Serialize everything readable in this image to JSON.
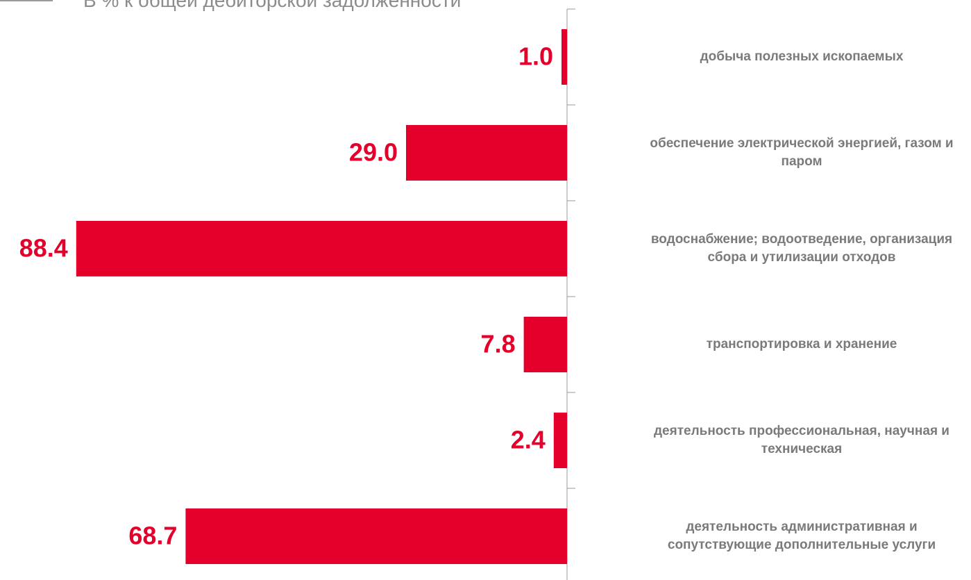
{
  "chart_data": {
    "type": "bar",
    "orientation": "horizontal",
    "title": "В % к общей дебиторской задолженности",
    "categories": [
      "добыча полезных ископаемых",
      "обеспечение электрической энергией, газом и паром",
      "водоснабжение; водоотведение, организация сбора и утилизации отходов",
      "транспортировка и хранение",
      "деятельность профессиональная, научная и техническая",
      "деятельность административная и сопутствующие дополнительные услуги"
    ],
    "values": [
      1.0,
      29.0,
      88.4,
      7.8,
      2.4,
      68.7
    ],
    "value_labels": [
      "1.0",
      "29.0",
      "88.4",
      "7.8",
      "2.4",
      "68.7"
    ],
    "color": "#e4002b",
    "xlim": [
      0,
      100
    ]
  }
}
